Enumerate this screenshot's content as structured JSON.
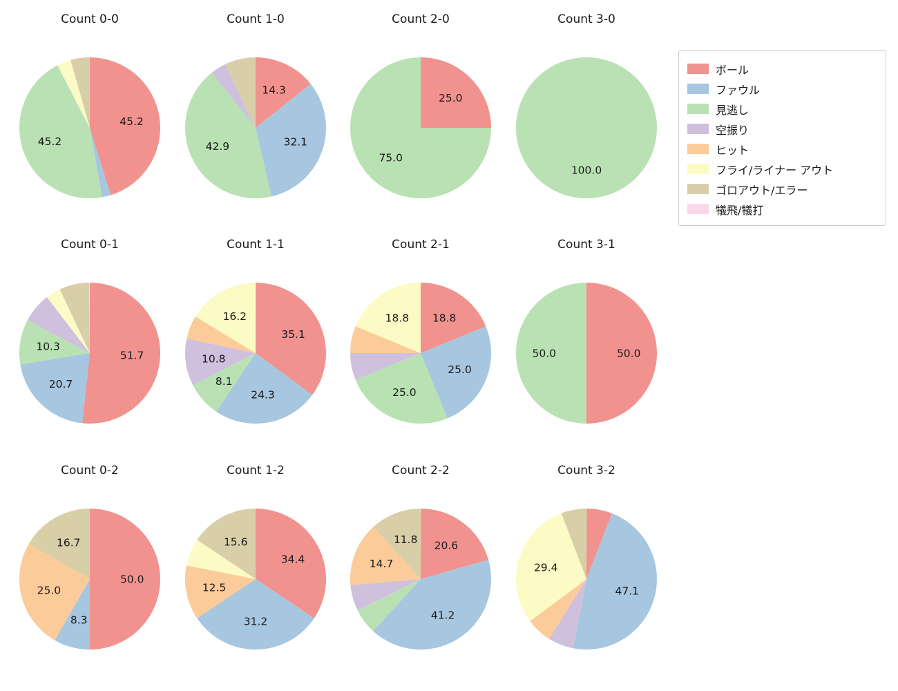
{
  "legend": {
    "items": [
      {
        "label": "ボール",
        "color": "#f1928e"
      },
      {
        "label": "ファウル",
        "color": "#a7c6df"
      },
      {
        "label": "見逃し",
        "color": "#b9e1b3"
      },
      {
        "label": "空振り",
        "color": "#cfc0de"
      },
      {
        "label": "ヒット",
        "color": "#fbcb99"
      },
      {
        "label": "フライ/ライナー アウト",
        "color": "#fcfbc5"
      },
      {
        "label": "ゴロアウト/エラー",
        "color": "#d8cfa9"
      },
      {
        "label": "犠飛/犠打",
        "color": "#fbd8e9"
      }
    ]
  },
  "chart_data": [
    {
      "type": "pie",
      "title": "Count 0-0",
      "slices": [
        {
          "category": "ボール",
          "value": 45.2,
          "label": "45.2"
        },
        {
          "category": "ファウル",
          "value": 2.0
        },
        {
          "category": "見逃し",
          "value": 45.2,
          "label": "45.2"
        },
        {
          "category": "フライ/ライナー アウト",
          "value": 3.2
        },
        {
          "category": "ゴロアウト/エラー",
          "value": 4.4
        }
      ]
    },
    {
      "type": "pie",
      "title": "Count 1-0",
      "slices": [
        {
          "category": "ボール",
          "value": 14.3,
          "label": "14.3"
        },
        {
          "category": "ファウル",
          "value": 32.1,
          "label": "32.1"
        },
        {
          "category": "見逃し",
          "value": 42.9,
          "label": "42.9"
        },
        {
          "category": "空振り",
          "value": 3.6
        },
        {
          "category": "ゴロアウト/エラー",
          "value": 7.1
        }
      ]
    },
    {
      "type": "pie",
      "title": "Count 2-0",
      "slices": [
        {
          "category": "ボール",
          "value": 25.0,
          "label": "25.0"
        },
        {
          "category": "見逃し",
          "value": 75.0,
          "label": "75.0"
        }
      ]
    },
    {
      "type": "pie",
      "title": "Count 3-0",
      "slices": [
        {
          "category": "見逃し",
          "value": 100.0,
          "label": "100.0"
        }
      ]
    },
    {
      "type": "pie",
      "title": "Count 0-1",
      "slices": [
        {
          "category": "ボール",
          "value": 51.7,
          "label": "51.7"
        },
        {
          "category": "ファウル",
          "value": 20.7,
          "label": "20.7"
        },
        {
          "category": "見逃し",
          "value": 10.3,
          "label": "10.3"
        },
        {
          "category": "空振り",
          "value": 6.9
        },
        {
          "category": "フライ/ライナー アウト",
          "value": 3.4
        },
        {
          "category": "ゴロアウト/エラー",
          "value": 6.9
        }
      ]
    },
    {
      "type": "pie",
      "title": "Count 1-1",
      "slices": [
        {
          "category": "ボール",
          "value": 35.1,
          "label": "35.1"
        },
        {
          "category": "ファウル",
          "value": 24.3,
          "label": "24.3"
        },
        {
          "category": "見逃し",
          "value": 8.1,
          "label": "8.1"
        },
        {
          "category": "空振り",
          "value": 10.8,
          "label": "10.8"
        },
        {
          "category": "ヒット",
          "value": 5.4
        },
        {
          "category": "フライ/ライナー アウト",
          "value": 16.2,
          "label": "16.2"
        }
      ]
    },
    {
      "type": "pie",
      "title": "Count 2-1",
      "slices": [
        {
          "category": "ボール",
          "value": 18.8,
          "label": "18.8"
        },
        {
          "category": "ファウル",
          "value": 25.0,
          "label": "25.0"
        },
        {
          "category": "見逃し",
          "value": 25.0,
          "label": "25.0"
        },
        {
          "category": "空振り",
          "value": 6.2
        },
        {
          "category": "ヒット",
          "value": 6.2
        },
        {
          "category": "フライ/ライナー アウト",
          "value": 18.8,
          "label": "18.8"
        }
      ]
    },
    {
      "type": "pie",
      "title": "Count 3-1",
      "slices": [
        {
          "category": "ボール",
          "value": 50.0,
          "label": "50.0"
        },
        {
          "category": "見逃し",
          "value": 50.0,
          "label": "50.0"
        }
      ]
    },
    {
      "type": "pie",
      "title": "Count 0-2",
      "slices": [
        {
          "category": "ボール",
          "value": 50.0,
          "label": "50.0"
        },
        {
          "category": "ファウル",
          "value": 8.3,
          "label": "8.3"
        },
        {
          "category": "ヒット",
          "value": 25.0,
          "label": "25.0"
        },
        {
          "category": "ゴロアウト/エラー",
          "value": 16.7,
          "label": "16.7"
        }
      ]
    },
    {
      "type": "pie",
      "title": "Count 1-2",
      "slices": [
        {
          "category": "ボール",
          "value": 34.4,
          "label": "34.4"
        },
        {
          "category": "ファウル",
          "value": 31.2,
          "label": "31.2"
        },
        {
          "category": "ヒット",
          "value": 12.5,
          "label": "12.5"
        },
        {
          "category": "フライ/ライナー アウト",
          "value": 6.3
        },
        {
          "category": "ゴロアウト/エラー",
          "value": 15.6,
          "label": "15.6"
        }
      ]
    },
    {
      "type": "pie",
      "title": "Count 2-2",
      "slices": [
        {
          "category": "ボール",
          "value": 20.6,
          "label": "20.6"
        },
        {
          "category": "ファウル",
          "value": 41.2,
          "label": "41.2"
        },
        {
          "category": "見逃し",
          "value": 5.9
        },
        {
          "category": "空振り",
          "value": 5.9
        },
        {
          "category": "ヒット",
          "value": 14.7,
          "label": "14.7"
        },
        {
          "category": "ゴロアウト/エラー",
          "value": 11.8,
          "label": "11.8"
        }
      ]
    },
    {
      "type": "pie",
      "title": "Count 3-2",
      "slices": [
        {
          "category": "ボール",
          "value": 5.9
        },
        {
          "category": "ファウル",
          "value": 47.1,
          "label": "47.1"
        },
        {
          "category": "空振り",
          "value": 5.9
        },
        {
          "category": "ヒット",
          "value": 5.9
        },
        {
          "category": "フライ/ライナー アウト",
          "value": 29.4,
          "label": "29.4"
        },
        {
          "category": "ゴロアウト/エラー",
          "value": 5.9
        }
      ]
    }
  ]
}
